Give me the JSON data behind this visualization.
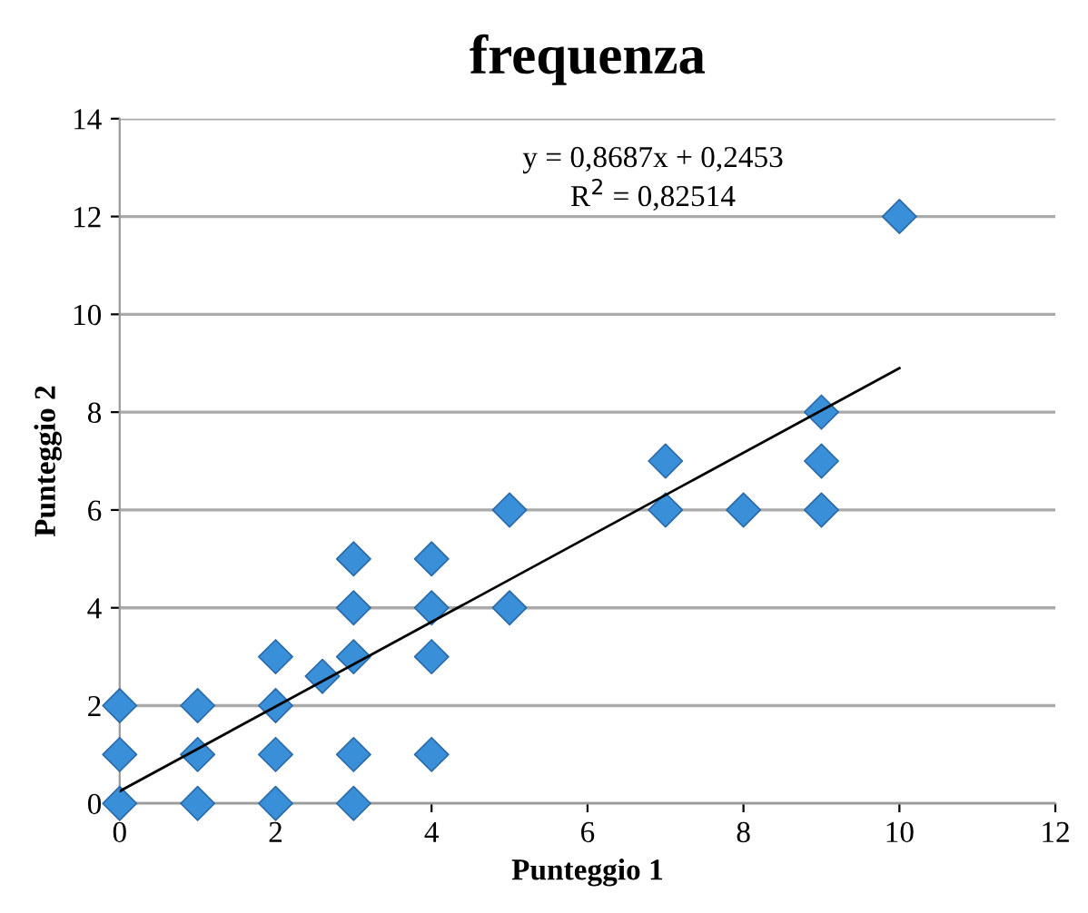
{
  "chart_data": {
    "type": "scatter",
    "title": "frequenza",
    "xlabel": "Punteggio 1",
    "ylabel": "Punteggio 2",
    "xlim": [
      0,
      12
    ],
    "xticks": [
      0,
      2,
      4,
      6,
      8,
      10,
      12
    ],
    "ylim": [
      0,
      14
    ],
    "yticks": [
      0,
      2,
      4,
      6,
      8,
      10,
      12,
      14
    ],
    "grid": "y",
    "marker": "diamond",
    "series": [
      {
        "color": "#3a8fd9",
        "x": [
          0,
          0,
          0,
          1,
          1,
          1,
          2,
          2,
          2,
          2,
          2.6,
          3,
          3,
          3,
          3,
          3,
          4,
          4,
          4,
          4,
          5,
          5,
          7,
          7,
          8,
          9,
          9,
          9,
          10
        ],
        "values": [
          0,
          1,
          2,
          0,
          1,
          2,
          0,
          1,
          2,
          3,
          2.6,
          0,
          1,
          3,
          4,
          5,
          1,
          3,
          4,
          5,
          4,
          6,
          6,
          7,
          6,
          6,
          7,
          8,
          12
        ]
      },
      {
        "type": "line",
        "color": "#000000",
        "marker": "none",
        "line_style": "solid",
        "x": [
          0,
          10
        ],
        "values": [
          0.25,
          8.9
        ]
      }
    ],
    "annotations": [
      "y = 0,8687x + 0,2453",
      "R$^{2}$ = 0,82514"
    ]
  }
}
